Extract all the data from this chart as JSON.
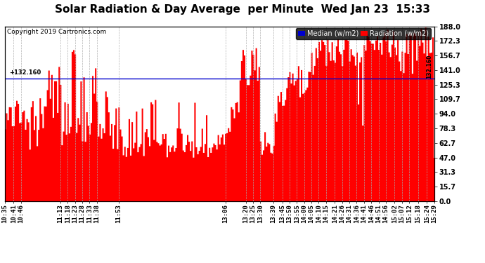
{
  "title": "Solar Radiation & Day Average  per Minute  Wed Jan 23  15:33",
  "copyright": "Copyright 2019 Cartronics.com",
  "ylim": [
    0.0,
    188.0
  ],
  "yticks": [
    0.0,
    15.7,
    31.3,
    47.0,
    62.7,
    78.3,
    94.0,
    109.7,
    125.3,
    141.0,
    156.7,
    172.3,
    188.0
  ],
  "median_value": 132.16,
  "median_label": "132.160",
  "bg_color": "#ffffff",
  "bar_color": "#ff0000",
  "median_color": "#0000cd",
  "title_fontsize": 11,
  "copyright_fontsize": 6.5,
  "tick_fontsize": 6.5,
  "legend_fontsize": 7,
  "x_labels": [
    "10:35",
    "10:41",
    "10:46",
    "11:13",
    "11:18",
    "11:23",
    "11:28",
    "11:33",
    "11:38",
    "11:53",
    "13:06",
    "13:20",
    "13:25",
    "13:30",
    "13:39",
    "13:45",
    "13:50",
    "13:55",
    "14:00",
    "14:05",
    "14:10",
    "14:15",
    "14:21",
    "14:26",
    "14:31",
    "14:36",
    "14:41",
    "14:46",
    "14:51",
    "14:56",
    "15:02",
    "15:07",
    "15:12",
    "15:18",
    "15:24",
    "15:29"
  ],
  "start_time": "10:35",
  "end_time": "15:29"
}
